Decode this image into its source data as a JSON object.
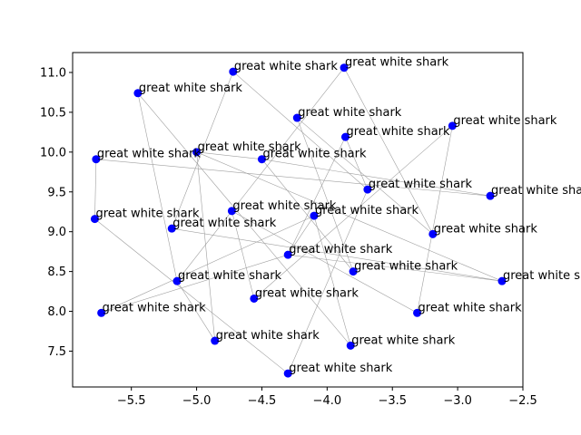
{
  "chart_data": {
    "type": "scatter",
    "title": "",
    "xlabel": "",
    "ylabel": "",
    "xlim": [
      -5.95,
      -2.5
    ],
    "ylim": [
      7.05,
      11.25
    ],
    "xticks": [
      -5.5,
      -5.0,
      -4.5,
      -4.0,
      -3.5,
      -3.0,
      -2.5
    ],
    "xtick_labels": [
      "−5.5",
      "−5.0",
      "−4.5",
      "−4.0",
      "−3.5",
      "−3.0",
      "−2.5"
    ],
    "yticks": [
      7.5,
      8.0,
      8.5,
      9.0,
      9.5,
      10.0,
      10.5,
      11.0
    ],
    "ytick_labels": [
      "7.5",
      "8.0",
      "8.5",
      "9.0",
      "9.5",
      "10.0",
      "10.5",
      "11.0"
    ],
    "grid": false,
    "marker_color": "#0000ff",
    "edge_color": "#a0a0a0",
    "points": [
      {
        "x": -4.72,
        "y": 11.01,
        "label": "great white shark"
      },
      {
        "x": -3.87,
        "y": 11.06,
        "label": "great white shark"
      },
      {
        "x": -5.45,
        "y": 10.74,
        "label": "great white shark"
      },
      {
        "x": -4.23,
        "y": 10.43,
        "label": "great white shark"
      },
      {
        "x": -3.04,
        "y": 10.33,
        "label": "great white shark"
      },
      {
        "x": -3.86,
        "y": 10.19,
        "label": "great white shark"
      },
      {
        "x": -5.0,
        "y": 10.0,
        "label": "great white shark"
      },
      {
        "x": -5.77,
        "y": 9.91,
        "label": "great white shark"
      },
      {
        "x": -4.5,
        "y": 9.91,
        "label": "great white shark"
      },
      {
        "x": -3.69,
        "y": 9.53,
        "label": "great white shark"
      },
      {
        "x": -2.75,
        "y": 9.45,
        "label": "great white shark"
      },
      {
        "x": -4.73,
        "y": 9.26,
        "label": "great white shark"
      },
      {
        "x": -4.1,
        "y": 9.2,
        "label": "great white shark"
      },
      {
        "x": -5.78,
        "y": 9.16,
        "label": "great white shark"
      },
      {
        "x": -5.19,
        "y": 9.04,
        "label": "great white shark"
      },
      {
        "x": -3.19,
        "y": 8.97,
        "label": "great white shark"
      },
      {
        "x": -4.3,
        "y": 8.71,
        "label": "great white shark"
      },
      {
        "x": -3.8,
        "y": 8.5,
        "label": "great white shark"
      },
      {
        "x": -2.66,
        "y": 8.38,
        "label": "great white shark"
      },
      {
        "x": -5.15,
        "y": 8.38,
        "label": "great white shark"
      },
      {
        "x": -4.56,
        "y": 8.16,
        "label": "great white shark"
      },
      {
        "x": -5.73,
        "y": 7.98,
        "label": "great white shark"
      },
      {
        "x": -3.31,
        "y": 7.98,
        "label": "great white shark"
      },
      {
        "x": -4.86,
        "y": 7.63,
        "label": "great white shark"
      },
      {
        "x": -3.82,
        "y": 7.57,
        "label": "great white shark"
      },
      {
        "x": -4.3,
        "y": 7.22,
        "label": "great white shark"
      }
    ],
    "edges": [
      [
        2,
        19
      ],
      [
        2,
        24
      ],
      [
        0,
        14
      ],
      [
        6,
        8
      ],
      [
        6,
        23
      ],
      [
        6,
        18
      ],
      [
        7,
        13
      ],
      [
        7,
        10
      ],
      [
        1,
        15
      ],
      [
        3,
        15
      ],
      [
        3,
        17
      ],
      [
        4,
        22
      ],
      [
        4,
        20
      ],
      [
        5,
        9
      ],
      [
        5,
        16
      ],
      [
        9,
        25
      ],
      [
        11,
        20
      ],
      [
        12,
        16
      ],
      [
        11,
        22
      ],
      [
        13,
        25
      ],
      [
        16,
        18
      ],
      [
        16,
        21
      ],
      [
        14,
        18
      ],
      [
        12,
        24
      ],
      [
        1,
        19
      ],
      [
        21,
        12
      ],
      [
        0,
        9
      ],
      [
        8,
        10
      ],
      [
        17,
        8
      ],
      [
        23,
        19
      ]
    ]
  }
}
